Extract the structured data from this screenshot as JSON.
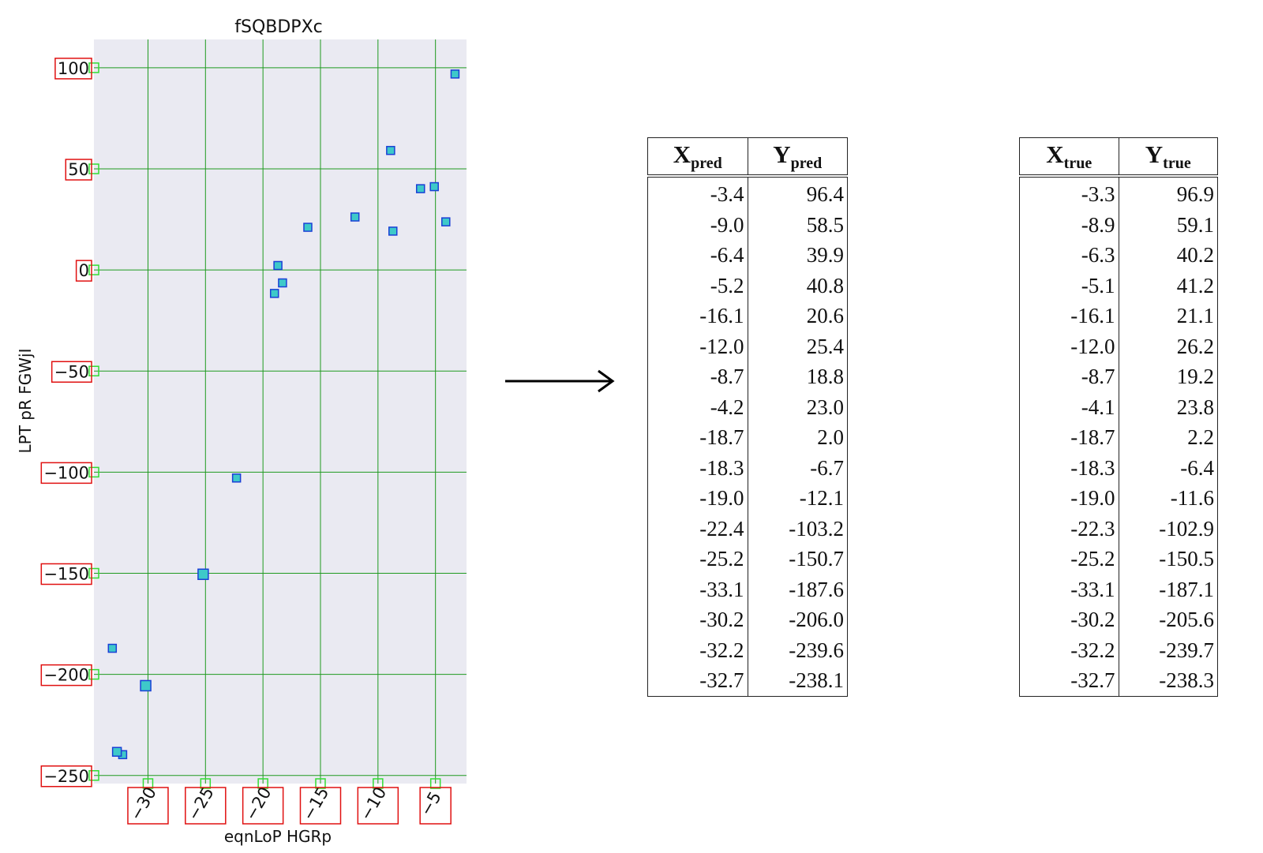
{
  "chart_data": {
    "type": "scatter",
    "title": "fSQBDPXc",
    "xlabel": "eqnLoP HGRp",
    "ylabel": "LPT pR FGWjI",
    "xlim": [
      -34.7,
      -2.3
    ],
    "ylim": [
      -254,
      114
    ],
    "xticks": [
      -30,
      -25,
      -20,
      -15,
      -10,
      -5
    ],
    "xtick_labels": [
      "−30",
      "−25",
      "−20",
      "−15",
      "−10",
      "−5"
    ],
    "yticks": [
      100,
      50,
      0,
      -50,
      -100,
      -150,
      -200,
      -250
    ],
    "ytick_labels": [
      "100",
      "50",
      "0",
      "−50",
      "−100",
      "−150",
      "−200",
      "−250"
    ],
    "grid": true,
    "colors": {
      "background": "#eaeaf2",
      "grid": "#1f9a1f",
      "marker_fill": "#3ec9c9",
      "marker_edge": "#1a3fd6",
      "tick_box": "#e01010",
      "tick_marker": "#33dd33"
    },
    "series": [
      {
        "x": [
          -3.3,
          -8.9,
          -6.3,
          -5.1,
          -16.1,
          -12.0,
          -8.7,
          -4.1,
          -18.7,
          -18.3,
          -19.0,
          -22.3,
          -25.2,
          -33.1,
          -30.2,
          -32.2,
          -32.7
        ],
        "y": [
          96.9,
          59.1,
          40.2,
          41.2,
          21.1,
          26.2,
          19.2,
          23.8,
          2.2,
          -6.4,
          -11.6,
          -102.9,
          -150.5,
          -187.1,
          -205.6,
          -239.7,
          -238.3
        ],
        "marker_size": [
          1,
          1,
          1,
          1,
          1,
          1,
          1,
          1,
          1,
          1,
          1,
          1,
          1.3,
          1,
          1.3,
          1,
          1.1
        ]
      }
    ]
  },
  "tables": {
    "pred": {
      "col1_base": "X",
      "col1_sub": "pred",
      "col2_base": "Y",
      "col2_sub": "pred",
      "rows": [
        [
          "-3.4",
          "96.4"
        ],
        [
          "-9.0",
          "58.5"
        ],
        [
          "-6.4",
          "39.9"
        ],
        [
          "-5.2",
          "40.8"
        ],
        [
          "-16.1",
          "20.6"
        ],
        [
          "-12.0",
          "25.4"
        ],
        [
          "-8.7",
          "18.8"
        ],
        [
          "-4.2",
          "23.0"
        ],
        [
          "-18.7",
          "2.0"
        ],
        [
          "-18.3",
          "-6.7"
        ],
        [
          "-19.0",
          "-12.1"
        ],
        [
          "-22.4",
          "-103.2"
        ],
        [
          "-25.2",
          "-150.7"
        ],
        [
          "-33.1",
          "-187.6"
        ],
        [
          "-30.2",
          "-206.0"
        ],
        [
          "-32.2",
          "-239.6"
        ],
        [
          "-32.7",
          "-238.1"
        ]
      ]
    },
    "true": {
      "col1_base": "X",
      "col1_sub": "true",
      "col2_base": "Y",
      "col2_sub": "true",
      "rows": [
        [
          "-3.3",
          "96.9"
        ],
        [
          "-8.9",
          "59.1"
        ],
        [
          "-6.3",
          "40.2"
        ],
        [
          "-5.1",
          "41.2"
        ],
        [
          "-16.1",
          "21.1"
        ],
        [
          "-12.0",
          "26.2"
        ],
        [
          "-8.7",
          "19.2"
        ],
        [
          "-4.1",
          "23.8"
        ],
        [
          "-18.7",
          "2.2"
        ],
        [
          "-18.3",
          "-6.4"
        ],
        [
          "-19.0",
          "-11.6"
        ],
        [
          "-22.3",
          "-102.9"
        ],
        [
          "-25.2",
          "-150.5"
        ],
        [
          "-33.1",
          "-187.1"
        ],
        [
          "-30.2",
          "-205.6"
        ],
        [
          "-32.2",
          "-239.7"
        ],
        [
          "-32.7",
          "-238.3"
        ]
      ]
    }
  }
}
